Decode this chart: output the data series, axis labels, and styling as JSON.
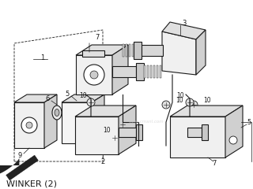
{
  "title": "WINKER (2)",
  "background_color": "#ffffff",
  "line_color": "#1a1a1a",
  "title_fontsize": 8,
  "label_fontsize": 6,
  "fig_width": 3.2,
  "fig_height": 2.4,
  "dpi": 100
}
